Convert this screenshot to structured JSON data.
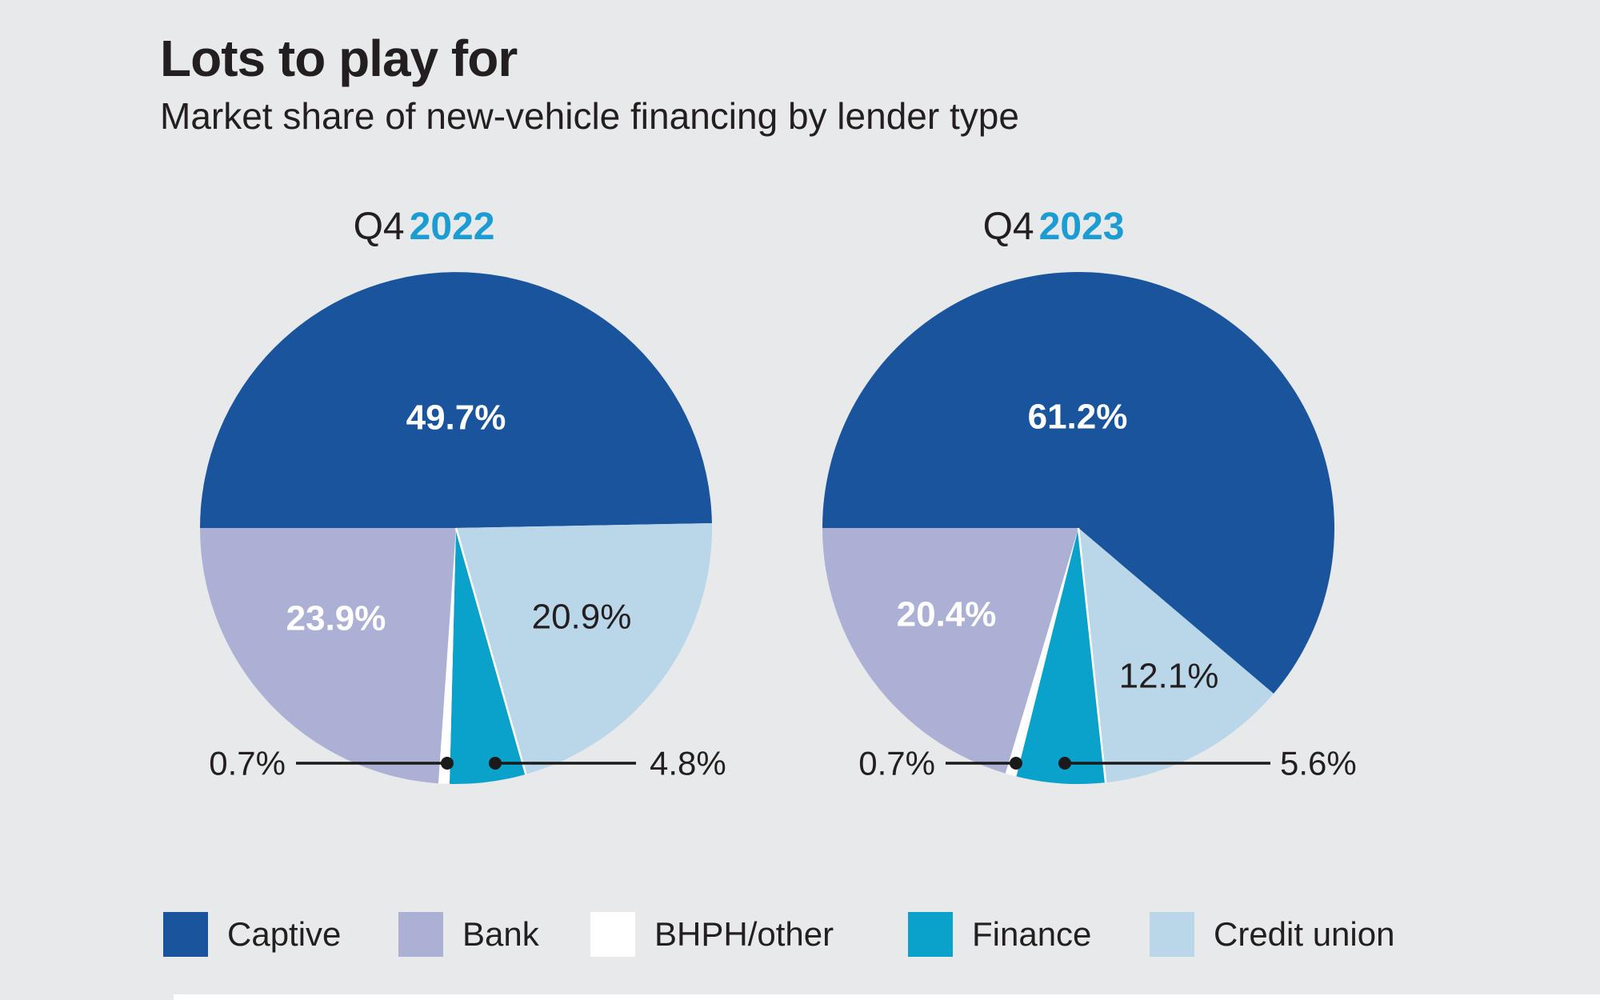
{
  "header": {
    "title": "Lots to play for",
    "subtitle": "Market share of new-vehicle financing by lender type"
  },
  "chart_data": [
    {
      "type": "pie",
      "title": "Q4 2022",
      "period_prefix": "Q4",
      "year": "2022",
      "labels": [
        "Captive",
        "Bank",
        "BHPH/other",
        "Finance",
        "Credit union"
      ],
      "values": [
        49.7,
        23.9,
        0.7,
        4.8,
        20.9
      ],
      "value_labels": [
        "49.7%",
        "23.9%",
        "0.7%",
        "4.8%",
        "20.9%"
      ],
      "colors": [
        "#1a549d",
        "#acb0d4",
        "#ffffff",
        "#0aa2ca",
        "#bad7e9"
      ]
    },
    {
      "type": "pie",
      "title": "Q4 2023",
      "period_prefix": "Q4",
      "year": "2023",
      "labels": [
        "Captive",
        "Bank",
        "BHPH/other",
        "Finance",
        "Credit union"
      ],
      "values": [
        61.2,
        20.4,
        0.7,
        5.6,
        12.1
      ],
      "value_labels": [
        "61.2%",
        "20.4%",
        "0.7%",
        "5.6%",
        "12.1%"
      ],
      "colors": [
        "#1a549d",
        "#acb0d4",
        "#ffffff",
        "#0aa2ca",
        "#bad7e9"
      ]
    }
  ],
  "legend": {
    "items": [
      {
        "label": "Captive",
        "color": "#1a549d"
      },
      {
        "label": "Bank",
        "color": "#acb0d4"
      },
      {
        "label": "BHPH/other",
        "color": "#ffffff"
      },
      {
        "label": "Finance",
        "color": "#0aa2ca"
      },
      {
        "label": "Credit union",
        "color": "#bad7e9"
      }
    ]
  },
  "styles": {
    "background": "#e7e9ea",
    "accent_year": "#1b9cd2",
    "text_dark": "#231f20",
    "leader_line": "#1a1a1a",
    "label_on_dark": "#ffffff"
  }
}
